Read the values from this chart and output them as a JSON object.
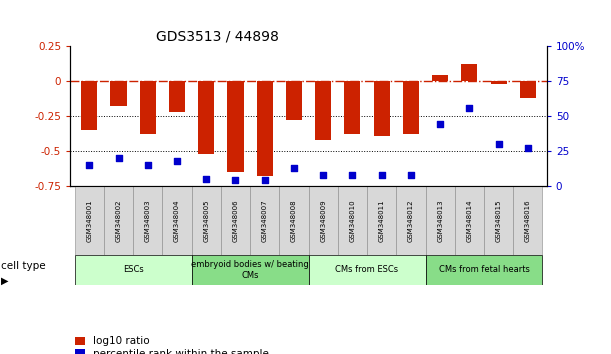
{
  "title": "GDS3513 / 44898",
  "samples": [
    "GSM348001",
    "GSM348002",
    "GSM348003",
    "GSM348004",
    "GSM348005",
    "GSM348006",
    "GSM348007",
    "GSM348008",
    "GSM348009",
    "GSM348010",
    "GSM348011",
    "GSM348012",
    "GSM348013",
    "GSM348014",
    "GSM348015",
    "GSM348016"
  ],
  "log10_ratio": [
    -0.35,
    -0.18,
    -0.38,
    -0.22,
    -0.52,
    -0.65,
    -0.68,
    -0.28,
    -0.42,
    -0.38,
    -0.39,
    -0.38,
    0.04,
    0.12,
    -0.02,
    -0.12
  ],
  "percentile_rank": [
    15,
    20,
    15,
    18,
    5,
    4,
    4,
    13,
    8,
    8,
    8,
    8,
    44,
    56,
    30,
    27
  ],
  "ylim_left": [
    -0.75,
    0.25
  ],
  "ylim_right": [
    0,
    100
  ],
  "yticks_left": [
    0.25,
    0,
    -0.25,
    -0.5,
    -0.75
  ],
  "yticks_right": [
    100,
    75,
    50,
    25,
    0
  ],
  "ytick_labels_left": [
    "0.25",
    "0",
    "-0.25",
    "-0.5",
    "-0.75"
  ],
  "ytick_labels_right": [
    "100%",
    "75",
    "50",
    "25",
    "0"
  ],
  "hline_zero_color": "#cc2200",
  "dotted_lines": [
    -0.25,
    -0.5
  ],
  "bar_color": "#cc2200",
  "dot_color": "#0000cc",
  "cell_type_groups": [
    {
      "label": "ESCs",
      "start": 0,
      "end": 3,
      "color": "#ccffcc"
    },
    {
      "label": "embryoid bodies w/ beating\nCMs",
      "start": 4,
      "end": 7,
      "color": "#88dd88"
    },
    {
      "label": "CMs from ESCs",
      "start": 8,
      "end": 11,
      "color": "#ccffcc"
    },
    {
      "label": "CMs from fetal hearts",
      "start": 12,
      "end": 15,
      "color": "#88dd88"
    }
  ],
  "legend_red": "log10 ratio",
  "legend_blue": "percentile rank within the sample",
  "cell_type_label": "cell type",
  "bar_width": 0.55,
  "background_color": "#ffffff"
}
